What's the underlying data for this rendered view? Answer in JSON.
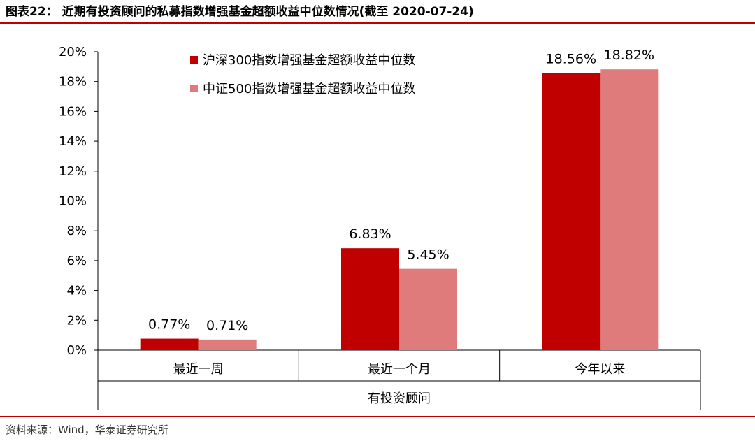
{
  "header": {
    "title": "图表22：  近期有投资顾问的私募指数增强基金超额收益中位数情况(截至 2020-07-24)"
  },
  "footer": {
    "source": "资料来源：Wind，华泰证券研究所"
  },
  "colors": {
    "rule": "#c00000",
    "series1": "#c00000",
    "series2": "#e07b7b"
  },
  "chart_data": {
    "type": "bar",
    "group_label": "有投资顾问",
    "categories": [
      "最近一周",
      "最近一个月",
      "今年以来"
    ],
    "series": [
      {
        "name": "沪深300指数增强基金超额收益中位数",
        "values": [
          0.77,
          6.83,
          18.56
        ],
        "labels": [
          "0.77%",
          "6.83%",
          "18.56%"
        ],
        "color": "#c00000"
      },
      {
        "name": "中证500指数增强基金超额收益中位数",
        "values": [
          0.71,
          5.45,
          18.82
        ],
        "labels": [
          "0.71%",
          "5.45%",
          "18.82%"
        ],
        "color": "#e07b7b"
      }
    ],
    "ylim": [
      0,
      20
    ],
    "yticks": [
      "0%",
      "2%",
      "4%",
      "6%",
      "8%",
      "10%",
      "12%",
      "14%",
      "16%",
      "18%",
      "20%"
    ],
    "legend_position": "top-left"
  }
}
